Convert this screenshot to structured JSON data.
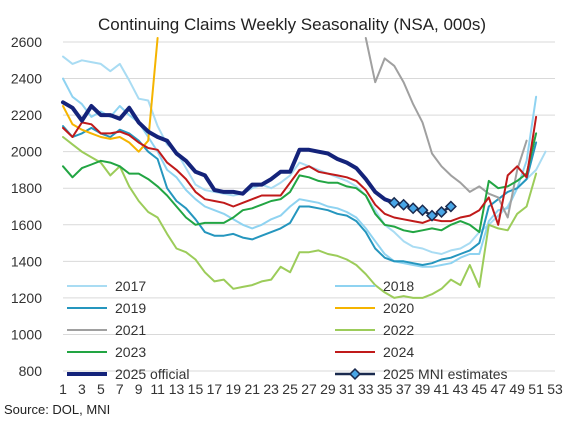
{
  "chart_data": {
    "type": "line",
    "title": "Continuing Claims Weekly Seasonality (NSA, 000s)",
    "source": "Source: DOL, MNI",
    "xlabel": "",
    "ylabel": "",
    "xlim": [
      1,
      53
    ],
    "ylim": [
      800,
      2600
    ],
    "y_ticks": [
      800,
      1000,
      1200,
      1400,
      1600,
      1800,
      2000,
      2200,
      2400,
      2600
    ],
    "x_ticks": [
      "1",
      "3",
      "5",
      "7",
      "9",
      "11",
      "13",
      "15",
      "17",
      "19",
      "21",
      "23",
      "25",
      "27",
      "29",
      "31",
      "33",
      "35",
      "37",
      "39",
      "41",
      "43",
      "45",
      "47",
      "49",
      "51",
      "53"
    ],
    "grid": "horizontal",
    "legend_position": "bottom",
    "series": [
      {
        "name": "2017",
        "color": "#a9dcf3",
        "width": 2,
        "x_start": 1,
        "values": [
          2520,
          2480,
          2500,
          2490,
          2480,
          2440,
          2480,
          2390,
          2290,
          2280,
          2140,
          2040,
          2000,
          1910,
          1820,
          1790,
          1780,
          1770,
          1760,
          1770,
          1800,
          1820,
          1800,
          1830,
          1870,
          1940,
          1920,
          1900,
          1880,
          1860,
          1840,
          1810,
          1760,
          1680,
          1600,
          1560,
          1510,
          1480,
          1470,
          1450,
          1440,
          1460,
          1470,
          1500,
          1560,
          1600,
          1650,
          1700,
          1800,
          1850,
          1900,
          2000
        ]
      },
      {
        "name": "2018",
        "color": "#8fd3f1",
        "width": 2,
        "x_start": 1,
        "values": [
          2400,
          2300,
          2260,
          2190,
          2220,
          2190,
          2250,
          2200,
          2160,
          2080,
          2000,
          1900,
          1860,
          1790,
          1740,
          1700,
          1680,
          1660,
          1630,
          1600,
          1580,
          1600,
          1630,
          1650,
          1700,
          1740,
          1730,
          1720,
          1700,
          1690,
          1670,
          1640,
          1580,
          1510,
          1440,
          1400,
          1390,
          1380,
          1370,
          1370,
          1380,
          1390,
          1420,
          1440,
          1440,
          1620,
          1680,
          1690,
          1800,
          1950,
          2300
        ]
      },
      {
        "name": "2019",
        "color": "#2596be",
        "width": 2,
        "x_start": 1,
        "values": [
          2140,
          2080,
          2100,
          2130,
          2100,
          2080,
          2120,
          2100,
          2060,
          2000,
          1960,
          1800,
          1730,
          1690,
          1630,
          1560,
          1540,
          1540,
          1550,
          1530,
          1520,
          1540,
          1560,
          1580,
          1610,
          1700,
          1700,
          1690,
          1680,
          1660,
          1650,
          1620,
          1560,
          1470,
          1420,
          1400,
          1400,
          1390,
          1380,
          1390,
          1410,
          1420,
          1440,
          1460,
          1500,
          1700,
          1740,
          1780,
          1800,
          1850,
          2050
        ]
      },
      {
        "name": "2020",
        "color": "#f5b400",
        "width": 2,
        "x_start": 1,
        "values": [
          2250,
          2150,
          2120,
          2100,
          2080,
          2070,
          2080,
          2050,
          2000,
          2060,
          2700
        ]
      },
      {
        "name": "2021",
        "color": "#a0a0a0",
        "width": 2,
        "x_start": 33,
        "values": [
          2650,
          2380,
          2510,
          2470,
          2380,
          2260,
          2160,
          1990,
          1920,
          1870,
          1830,
          1780,
          1810,
          1770,
          1750,
          1640,
          1900,
          2060
        ]
      },
      {
        "name": "2022",
        "color": "#9ccc5a",
        "width": 2,
        "x_start": 1,
        "values": [
          2080,
          2040,
          2000,
          1970,
          1940,
          1870,
          1920,
          1810,
          1730,
          1670,
          1640,
          1550,
          1470,
          1450,
          1410,
          1340,
          1290,
          1300,
          1250,
          1260,
          1270,
          1290,
          1300,
          1370,
          1340,
          1450,
          1450,
          1460,
          1440,
          1430,
          1410,
          1380,
          1330,
          1270,
          1230,
          1200,
          1210,
          1200,
          1200,
          1220,
          1250,
          1300,
          1270,
          1380,
          1260,
          1600,
          1580,
          1570,
          1660,
          1700,
          1880
        ]
      },
      {
        "name": "2023",
        "color": "#22a543",
        "width": 2,
        "x_start": 1,
        "values": [
          1920,
          1860,
          1910,
          1930,
          1950,
          1940,
          1920,
          1880,
          1880,
          1850,
          1810,
          1760,
          1700,
          1640,
          1600,
          1610,
          1610,
          1610,
          1640,
          1680,
          1690,
          1710,
          1730,
          1740,
          1780,
          1870,
          1860,
          1840,
          1830,
          1830,
          1810,
          1800,
          1760,
          1660,
          1600,
          1590,
          1570,
          1560,
          1570,
          1580,
          1570,
          1600,
          1620,
          1600,
          1560,
          1840,
          1800,
          1810,
          1840,
          1880,
          2100
        ]
      },
      {
        "name": "2024",
        "color": "#c01a1a",
        "width": 2,
        "x_start": 1,
        "values": [
          2130,
          2080,
          2160,
          2150,
          2100,
          2100,
          2110,
          2090,
          2050,
          2020,
          2010,
          1940,
          1900,
          1850,
          1780,
          1740,
          1730,
          1720,
          1700,
          1720,
          1740,
          1760,
          1760,
          1760,
          1830,
          1900,
          1920,
          1890,
          1880,
          1870,
          1860,
          1840,
          1790,
          1710,
          1660,
          1640,
          1630,
          1620,
          1610,
          1630,
          1620,
          1620,
          1640,
          1650,
          1680,
          1750,
          1600,
          1870,
          1920,
          1860,
          2190
        ]
      },
      {
        "name": "2025 official",
        "color": "#14237a",
        "width": 4,
        "x_start": 1,
        "values": [
          2270,
          2240,
          2170,
          2250,
          2200,
          2200,
          2180,
          2240,
          2160,
          2110,
          2080,
          2060,
          1990,
          1950,
          1890,
          1870,
          1790,
          1780,
          1780,
          1770,
          1820,
          1820,
          1850,
          1890,
          1890,
          2010,
          2010,
          2000,
          1990,
          1960,
          1940,
          1910,
          1850,
          1780,
          1740,
          1720
        ]
      },
      {
        "name": "2025 MNI estimates",
        "color": "#1a2a4e",
        "marker_color": "#49a6e6",
        "width": 2.5,
        "markers": true,
        "x_start": 36,
        "values": [
          1720,
          1710,
          1690,
          1680,
          1650,
          1670,
          1700
        ]
      }
    ]
  }
}
